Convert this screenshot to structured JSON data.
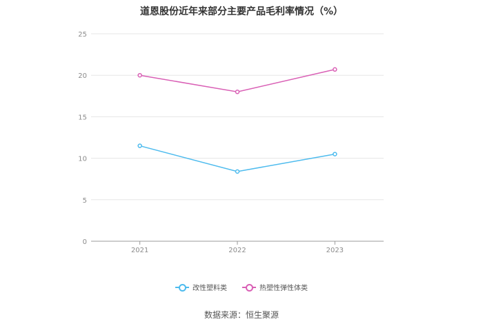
{
  "chart_data": {
    "type": "line",
    "title": "道恩股份近年来部分主要产品毛利率情况（%）",
    "categories": [
      "2021",
      "2022",
      "2023"
    ],
    "series": [
      {
        "name": "改性塑料类",
        "values": [
          11.5,
          8.4,
          10.5
        ],
        "color": "#4dbbee"
      },
      {
        "name": "热塑性弹性体类",
        "values": [
          20.0,
          18.0,
          20.7
        ],
        "color": "#d95fb5"
      }
    ],
    "ylim": [
      0,
      25
    ],
    "yticks": [
      0,
      5,
      10,
      15,
      20,
      25
    ],
    "grid": true,
    "legend_position": "bottom"
  },
  "source": "数据来源：恒生聚源"
}
